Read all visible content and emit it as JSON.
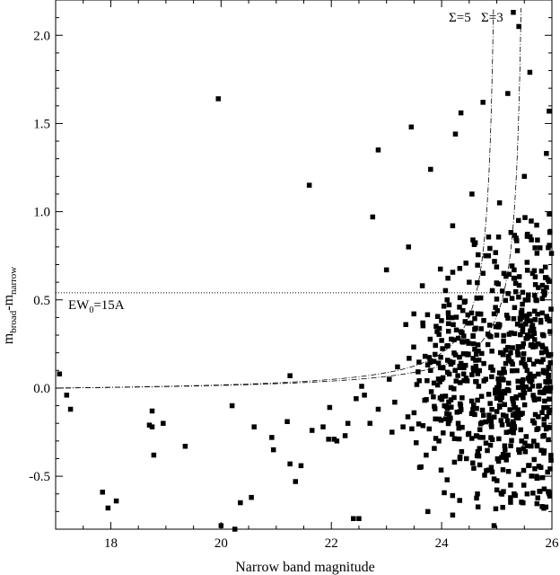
{
  "chart_data": {
    "type": "scatter",
    "xlabel": "Narrow band magnitude",
    "ylabel": {
      "main": "m",
      "sub1": "broad",
      "sep": "-m",
      "sub2": "narrow"
    },
    "xlim": [
      17.0,
      26.0
    ],
    "ylim": [
      -0.8,
      2.2
    ],
    "xticks": [
      18,
      20,
      22,
      24,
      26
    ],
    "yticks": [
      -0.5,
      0.0,
      0.5,
      1.0,
      1.5,
      2.0
    ],
    "xtick_labels": [
      "18",
      "20",
      "22",
      "24",
      "26"
    ],
    "ytick_labels": [
      "-0.5",
      "0.0",
      "0.5",
      "1.0",
      "1.5",
      "2.0"
    ],
    "grid": false,
    "annotations": {
      "ew_line": {
        "y": 0.54,
        "label_main": "EW",
        "label_sub": "0",
        "label_rest": "=15A"
      },
      "sigma5_label": "Σ=5",
      "sigma3_label": "Σ=3"
    },
    "curves": [
      {
        "name": "Σ=5",
        "asymptote_x": 25.05,
        "k": 0.24
      },
      {
        "name": "Σ=3",
        "asymptote_x": 25.55,
        "k": 0.24
      }
    ],
    "points": [
      [
        17.07,
        0.08
      ],
      [
        17.2,
        -0.04
      ],
      [
        17.27,
        -0.12
      ],
      [
        17.85,
        -0.59
      ],
      [
        17.95,
        -0.68
      ],
      [
        18.1,
        -0.64
      ],
      [
        18.7,
        -0.21
      ],
      [
        18.75,
        -0.13
      ],
      [
        18.78,
        -0.38
      ],
      [
        18.75,
        -0.22
      ],
      [
        18.95,
        -0.2
      ],
      [
        19.35,
        -0.33
      ],
      [
        19.95,
        1.64
      ],
      [
        20.0,
        -0.78
      ],
      [
        20.25,
        -0.8
      ],
      [
        20.2,
        -0.1
      ],
      [
        20.35,
        -0.65
      ],
      [
        20.55,
        -0.62
      ],
      [
        20.6,
        -0.22
      ],
      [
        20.92,
        -0.28
      ],
      [
        20.95,
        -0.35
      ],
      [
        21.2,
        -0.19
      ],
      [
        21.25,
        -0.43
      ],
      [
        21.25,
        0.07
      ],
      [
        21.35,
        -0.53
      ],
      [
        21.45,
        -0.44
      ],
      [
        21.6,
        1.15
      ],
      [
        21.65,
        -0.24
      ],
      [
        21.85,
        -0.22
      ],
      [
        21.95,
        -0.29
      ],
      [
        21.97,
        -0.11
      ],
      [
        22.05,
        -0.29
      ],
      [
        22.1,
        -0.3
      ],
      [
        22.25,
        -0.27
      ],
      [
        22.3,
        -0.2
      ],
      [
        22.4,
        -0.74
      ],
      [
        22.5,
        -0.74
      ],
      [
        22.45,
        -0.06
      ],
      [
        22.55,
        0.01
      ],
      [
        22.6,
        -0.04
      ],
      [
        22.7,
        -0.2
      ],
      [
        22.75,
        0.97
      ],
      [
        22.85,
        1.35
      ],
      [
        22.85,
        -0.12
      ],
      [
        23.0,
        0.67
      ],
      [
        23.05,
        0.05
      ],
      [
        23.1,
        -0.25
      ],
      [
        23.15,
        -0.08
      ],
      [
        23.2,
        0.12
      ],
      [
        23.3,
        -0.22
      ],
      [
        23.35,
        0.36
      ],
      [
        23.4,
        0.8
      ],
      [
        23.45,
        1.48
      ],
      [
        23.5,
        -0.14
      ],
      [
        23.55,
        0.02
      ],
      [
        23.6,
        -0.45
      ],
      [
        23.65,
        0.58
      ],
      [
        23.7,
        0.18
      ],
      [
        23.72,
        -0.38
      ],
      [
        23.75,
        -0.7
      ],
      [
        23.8,
        1.24
      ],
      [
        23.8,
        0.1
      ],
      [
        23.85,
        -0.05
      ],
      [
        23.9,
        0.35
      ],
      [
        23.95,
        -0.3
      ],
      [
        24.0,
        0.27
      ],
      [
        24.05,
        -0.1
      ],
      [
        24.1,
        0.5
      ],
      [
        24.1,
        -0.52
      ],
      [
        24.15,
        0.15
      ],
      [
        24.2,
        -0.72
      ],
      [
        24.2,
        0.92
      ],
      [
        24.25,
        1.44
      ],
      [
        24.3,
        -0.2
      ],
      [
        24.35,
        1.56
      ],
      [
        24.35,
        0.32
      ],
      [
        24.4,
        0.08
      ],
      [
        24.45,
        -0.4
      ],
      [
        24.5,
        0.6
      ],
      [
        24.55,
        1.1
      ],
      [
        24.6,
        -0.15
      ],
      [
        24.6,
        0.22
      ],
      [
        24.65,
        -0.6
      ],
      [
        24.7,
        0.42
      ],
      [
        24.75,
        1.62
      ],
      [
        24.75,
        -0.28
      ],
      [
        24.8,
        0.05
      ],
      [
        24.85,
        0.75
      ],
      [
        24.9,
        -0.45
      ],
      [
        24.9,
        0.12
      ],
      [
        24.95,
        -0.78
      ],
      [
        25.0,
        0.3
      ],
      [
        25.05,
        1.05
      ],
      [
        25.05,
        -0.1
      ],
      [
        25.1,
        0.55
      ],
      [
        25.15,
        -0.35
      ],
      [
        25.2,
        1.67
      ],
      [
        25.25,
        0.2
      ],
      [
        25.25,
        -0.55
      ],
      [
        25.3,
        2.13
      ],
      [
        25.35,
        0.85
      ],
      [
        25.35,
        -0.05
      ],
      [
        25.4,
        2.05
      ],
      [
        25.45,
        0.4
      ],
      [
        25.45,
        -0.3
      ],
      [
        25.5,
        1.2
      ],
      [
        25.55,
        0.1
      ],
      [
        25.55,
        -0.6
      ],
      [
        25.6,
        1.79
      ],
      [
        25.65,
        0.65
      ],
      [
        25.7,
        -0.15
      ],
      [
        25.75,
        0.25
      ],
      [
        25.8,
        -0.45
      ],
      [
        25.85,
        0.55
      ],
      [
        25.9,
        1.33
      ],
      [
        25.95,
        1.57
      ],
      [
        25.95,
        -0.6
      ],
      [
        25.9,
        0.0
      ]
    ],
    "dense_cluster": {
      "x_range": [
        23.3,
        26.0
      ],
      "y_range": [
        -0.7,
        1.0
      ],
      "center": [
        24.7,
        0.05
      ],
      "count": 650
    }
  }
}
